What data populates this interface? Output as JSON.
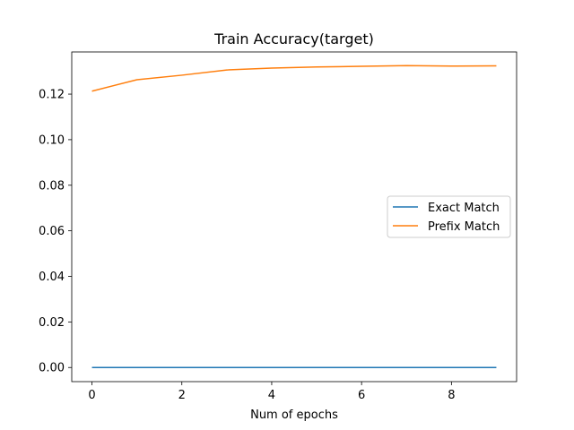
{
  "chart_data": {
    "type": "line",
    "title": "Train Accuracy(target)",
    "xlabel": "Num of epochs",
    "ylabel": "",
    "x": [
      0,
      1,
      2,
      3,
      4,
      5,
      6,
      7,
      8,
      9
    ],
    "xlim": [
      -0.45,
      9.45
    ],
    "ylim": [
      -0.0062,
      0.1385
    ],
    "xticks": [
      0,
      2,
      4,
      6,
      8
    ],
    "xtick_labels": [
      "0",
      "2",
      "4",
      "6",
      "8"
    ],
    "yticks": [
      0.0,
      0.02,
      0.04,
      0.06,
      0.08,
      0.1,
      0.12
    ],
    "ytick_labels": [
      "0.00",
      "0.02",
      "0.04",
      "0.06",
      "0.08",
      "0.10",
      "0.12"
    ],
    "grid": false,
    "legend_position": "center-right",
    "series": [
      {
        "name": "Exact Match",
        "color": "#1f77b4",
        "values": [
          0,
          0,
          0,
          0,
          0,
          0,
          0,
          0,
          0,
          0
        ]
      },
      {
        "name": "Prefix Match",
        "color": "#ff7f0e",
        "values": [
          0.1213,
          0.1263,
          0.1283,
          0.1306,
          0.1314,
          0.1319,
          0.1322,
          0.1325,
          0.1323,
          0.1324
        ]
      }
    ]
  }
}
